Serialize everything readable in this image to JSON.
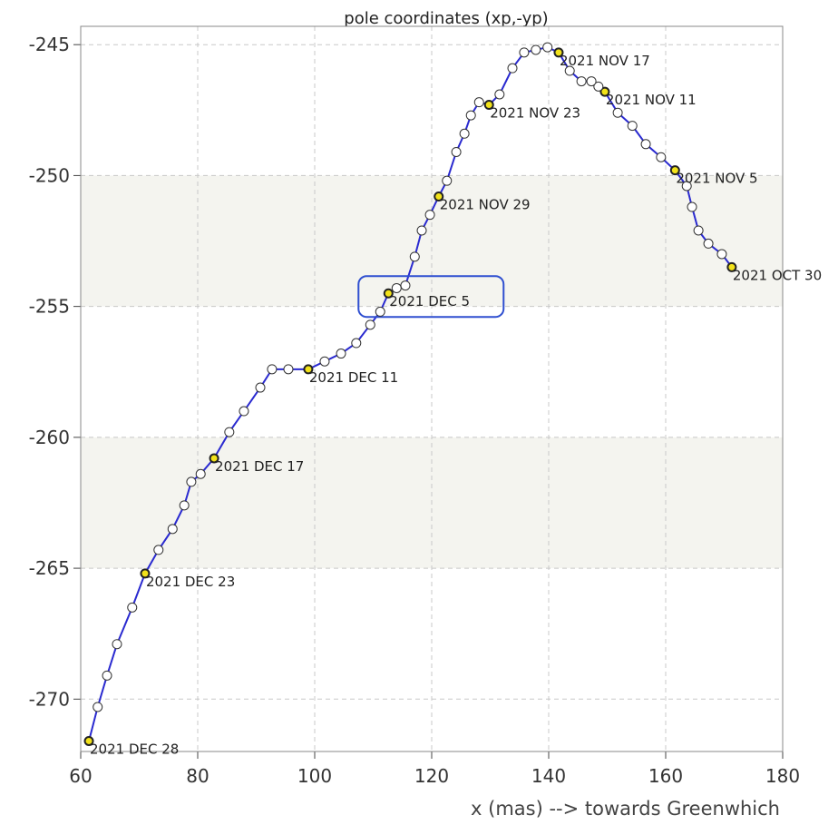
{
  "chart_data": {
    "type": "line",
    "title": "pole coordinates (xp,-yp)",
    "xlabel": "x (mas) --> towards Greenwhich",
    "xlim": [
      60,
      180
    ],
    "xticks": [
      60,
      80,
      100,
      120,
      140,
      160,
      180
    ],
    "ylim": [
      -272,
      -244.3
    ],
    "yticks": [
      -245,
      -250,
      -255,
      -260,
      -265,
      -270
    ],
    "grid": true,
    "x": [
      171.3,
      169.6,
      167.3,
      165.6,
      164.5,
      163.6,
      161.6,
      159.2,
      156.6,
      154.3,
      151.8,
      149.6,
      148.5,
      147.3,
      145.6,
      143.6,
      141.7,
      139.8,
      137.8,
      135.8,
      133.8,
      131.6,
      129.8,
      128.1,
      126.7,
      125.6,
      124.2,
      122.6,
      121.2,
      119.7,
      118.3,
      117.1,
      115.5,
      114.0,
      112.6,
      111.2,
      109.5,
      107.1,
      104.5,
      101.7,
      98.9,
      95.5,
      92.7,
      90.7,
      87.9,
      85.4,
      82.8,
      80.5,
      78.9,
      77.7,
      75.7,
      73.3,
      71.0,
      68.8,
      66.2,
      64.5,
      62.9,
      61.4
    ],
    "series": [
      {
        "color": "#2a2ad0",
        "values": [
          -253.5,
          -253.0,
          -252.6,
          -252.1,
          -251.2,
          -250.4,
          -249.8,
          -249.3,
          -248.8,
          -248.1,
          -247.6,
          -246.8,
          -246.6,
          -246.4,
          -246.4,
          -246.0,
          -245.3,
          -245.1,
          -245.2,
          -245.3,
          -245.9,
          -246.9,
          -247.3,
          -247.2,
          -247.7,
          -248.4,
          -249.1,
          -250.2,
          -250.8,
          -251.5,
          -252.1,
          -253.1,
          -254.2,
          -254.3,
          -254.5,
          -255.2,
          -255.7,
          -256.4,
          -256.8,
          -257.1,
          -257.4,
          -257.4,
          -257.4,
          -258.1,
          -259.0,
          -259.8,
          -260.8,
          -261.4,
          -261.7,
          -262.6,
          -263.5,
          -264.3,
          -265.2,
          -266.5,
          -267.9,
          -269.1,
          -270.3,
          -271.6
        ]
      }
    ],
    "point_labels": [
      "2021 OCT 30",
      null,
      null,
      null,
      null,
      null,
      "2021 NOV 5",
      null,
      null,
      null,
      null,
      "2021 NOV 11",
      null,
      null,
      null,
      null,
      "2021 NOV 17",
      null,
      null,
      null,
      null,
      null,
      "2021 NOV 23",
      null,
      null,
      null,
      null,
      null,
      "2021 NOV 29",
      null,
      null,
      null,
      null,
      null,
      "2021 DEC 5",
      null,
      null,
      null,
      null,
      null,
      "2021 DEC 11",
      null,
      null,
      null,
      null,
      null,
      "2021 DEC 17",
      null,
      null,
      null,
      null,
      null,
      "2021 DEC 23",
      null,
      null,
      null,
      null,
      "2021 DEC 28"
    ],
    "highlight": 34
  }
}
